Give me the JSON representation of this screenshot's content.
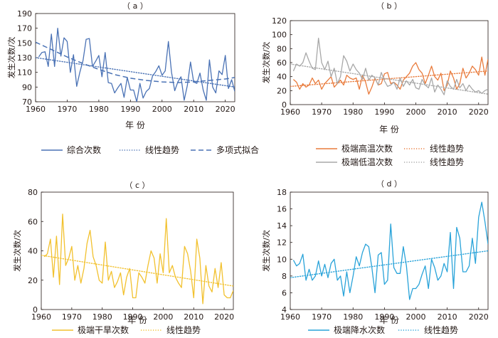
{
  "figure": {
    "xlabel": "年  份",
    "ylabel": "发生次数/次"
  },
  "chart_data": [
    {
      "id": "a",
      "letter": "（ a ）",
      "type": "line",
      "xlabel": "年  份",
      "ylabel": "发生次数/次",
      "xlim": [
        1960,
        2023
      ],
      "ylim": [
        70,
        190
      ],
      "xticks": [
        1960,
        1970,
        1980,
        1990,
        2000,
        2010,
        2020
      ],
      "yticks": [
        70,
        90,
        110,
        130,
        150,
        170,
        190
      ],
      "x": [
        1961,
        1962,
        1963,
        1964,
        1965,
        1966,
        1967,
        1968,
        1969,
        1970,
        1971,
        1972,
        1973,
        1974,
        1975,
        1976,
        1977,
        1978,
        1979,
        1980,
        1981,
        1982,
        1983,
        1984,
        1985,
        1986,
        1987,
        1988,
        1989,
        1990,
        1991,
        1992,
        1993,
        1994,
        1995,
        1996,
        1997,
        1998,
        1999,
        2000,
        2001,
        2002,
        2003,
        2004,
        2005,
        2006,
        2007,
        2008,
        2009,
        2010,
        2011,
        2012,
        2013,
        2014,
        2015,
        2016,
        2017,
        2018,
        2019,
        2020,
        2021,
        2022,
        2023
      ],
      "series": [
        {
          "name": "综合次数",
          "style": "solid",
          "color": "#4a72b5",
          "values": [
            131,
            137,
            138,
            118,
            162,
            118,
            170,
            132,
            157,
            152,
            110,
            134,
            91,
            110,
            126,
            155,
            156,
            118,
            125,
            133,
            104,
            137,
            96,
            95,
            82,
            89,
            95,
            76,
            103,
            86,
            86,
            70,
            95,
            75,
            84,
            88,
            105,
            111,
            119,
            106,
            112,
            152,
            110,
            85,
            97,
            104,
            72,
            92,
            124,
            97,
            95,
            109,
            86,
            72,
            127,
            90,
            82,
            112,
            107,
            133,
            88,
            100,
            84
          ]
        },
        {
          "name": "线性趋势",
          "style": "dotted",
          "color": "#4a72b5",
          "fit": "linear",
          "start": [
            1960,
            130
          ],
          "end": [
            2023,
            90
          ]
        },
        {
          "name": "多项式拟合",
          "style": "dashed",
          "color": "#4a72b5",
          "fit": "polynomial",
          "curve": [
            [
              1960,
              151
            ],
            [
              1965,
              141
            ],
            [
              1970,
              131
            ],
            [
              1975,
              122
            ],
            [
              1980,
              114
            ],
            [
              1985,
              107
            ],
            [
              1990,
              102
            ],
            [
              1995,
              99
            ],
            [
              2000,
              97
            ],
            [
              2005,
              96
            ],
            [
              2010,
              97
            ],
            [
              2015,
              99
            ],
            [
              2020,
              101
            ],
            [
              2023,
              103
            ]
          ]
        }
      ]
    },
    {
      "id": "b",
      "letter": "（ b ）",
      "type": "line",
      "xlabel": "年  份",
      "ylabel": "发生次数/次",
      "xlim": [
        1960,
        2023
      ],
      "ylim": [
        0,
        120
      ],
      "xticks": [
        1960,
        1970,
        1980,
        1990,
        2000,
        2010,
        2020
      ],
      "yticks": [
        0,
        20,
        40,
        60,
        80,
        100,
        120
      ],
      "x": [
        1961,
        1962,
        1963,
        1964,
        1965,
        1966,
        1967,
        1968,
        1969,
        1970,
        1971,
        1972,
        1973,
        1974,
        1975,
        1976,
        1977,
        1978,
        1979,
        1980,
        1981,
        1982,
        1983,
        1984,
        1985,
        1986,
        1987,
        1988,
        1989,
        1990,
        1991,
        1992,
        1993,
        1994,
        1995,
        1996,
        1997,
        1998,
        1999,
        2000,
        2001,
        2002,
        2003,
        2004,
        2005,
        2006,
        2007,
        2008,
        2009,
        2010,
        2011,
        2012,
        2013,
        2014,
        2015,
        2016,
        2017,
        2018,
        2019,
        2020,
        2021,
        2022,
        2023
      ],
      "series": [
        {
          "name": "极端高温次数",
          "style": "solid",
          "color": "#e97b3c",
          "values": [
            36,
            32,
            22,
            30,
            25,
            28,
            38,
            30,
            35,
            22,
            30,
            35,
            40,
            25,
            30,
            35,
            28,
            42,
            38,
            36,
            38,
            22,
            42,
            32,
            15,
            25,
            38,
            28,
            30,
            44,
            46,
            30,
            32,
            28,
            22,
            35,
            40,
            45,
            55,
            60,
            50,
            45,
            30,
            42,
            55,
            40,
            35,
            45,
            20,
            28,
            48,
            38,
            22,
            30,
            52,
            38,
            45,
            55,
            50,
            42,
            68,
            42,
            65
          ]
        },
        {
          "name": "线性趋势",
          "style": "dotted",
          "color": "#e97b3c",
          "fit": "linear",
          "start": [
            1960,
            26
          ],
          "end": [
            2023,
            48
          ]
        },
        {
          "name": "极端低温次数",
          "style": "solid",
          "color": "#a8a8a8",
          "values": [
            48,
            58,
            55,
            60,
            74,
            62,
            52,
            50,
            95,
            60,
            50,
            62,
            40,
            52,
            30,
            40,
            70,
            62,
            48,
            58,
            50,
            45,
            36,
            52,
            35,
            42,
            38,
            28,
            46,
            34,
            26,
            28,
            32,
            22,
            38,
            26,
            34,
            28,
            36,
            24,
            22,
            36,
            28,
            24,
            38,
            18,
            28,
            22,
            14,
            34,
            26,
            22,
            36,
            24,
            30,
            20,
            28,
            22,
            18,
            20,
            16,
            20,
            22
          ]
        },
        {
          "name": "线性趋势",
          "style": "dotted",
          "color": "#a8a8a8",
          "fit": "linear",
          "start": [
            1960,
            58
          ],
          "end": [
            2023,
            15
          ]
        }
      ]
    },
    {
      "id": "c",
      "letter": "（ c ）",
      "type": "line",
      "xlabel": "年  份",
      "ylabel": "发生次数/次",
      "xlim": [
        1960,
        2023
      ],
      "ylim": [
        0,
        80
      ],
      "xticks": [
        1960,
        1970,
        1980,
        1990,
        2000,
        2010,
        2020
      ],
      "yticks": [
        0,
        20,
        40,
        60,
        80
      ],
      "x": [
        1961,
        1962,
        1963,
        1964,
        1965,
        1966,
        1967,
        1968,
        1969,
        1970,
        1971,
        1972,
        1973,
        1974,
        1975,
        1976,
        1977,
        1978,
        1979,
        1980,
        1981,
        1982,
        1983,
        1984,
        1985,
        1986,
        1987,
        1988,
        1989,
        1990,
        1991,
        1992,
        1993,
        1994,
        1995,
        1996,
        1997,
        1998,
        1999,
        2000,
        2001,
        2002,
        2003,
        2004,
        2005,
        2006,
        2007,
        2008,
        2009,
        2010,
        2011,
        2012,
        2013,
        2014,
        2015,
        2016,
        2017,
        2018,
        2019,
        2020,
        2021,
        2022,
        2023
      ],
      "series": [
        {
          "name": "极端干旱次数",
          "style": "solid",
          "color": "#f2c12e",
          "values": [
            36,
            38,
            48,
            22,
            50,
            17,
            65,
            30,
            35,
            43,
            20,
            30,
            18,
            28,
            45,
            54,
            36,
            30,
            20,
            18,
            46,
            20,
            26,
            15,
            19,
            25,
            10,
            22,
            28,
            8,
            8,
            25,
            22,
            18,
            30,
            40,
            35,
            18,
            38,
            25,
            62,
            25,
            30,
            22,
            18,
            15,
            43,
            38,
            26,
            8,
            48,
            35,
            4,
            30,
            16,
            12,
            28,
            15,
            32,
            10,
            8,
            8,
            13
          ]
        },
        {
          "name": "线性趋势",
          "style": "dotted",
          "color": "#f2c12e",
          "fit": "linear",
          "start": [
            1960,
            37
          ],
          "end": [
            2023,
            16
          ]
        }
      ]
    },
    {
      "id": "d",
      "letter": "（ d ）",
      "type": "line",
      "xlabel": "年  份",
      "ylabel": "发生次数/次",
      "xlim": [
        1960,
        2023
      ],
      "ylim": [
        4,
        18
      ],
      "xticks": [
        1960,
        1970,
        1980,
        1990,
        2000,
        2010,
        2020
      ],
      "yticks": [
        4,
        6,
        8,
        10,
        12,
        14,
        16,
        18
      ],
      "x": [
        1961,
        1962,
        1963,
        1964,
        1965,
        1966,
        1967,
        1968,
        1969,
        1970,
        1971,
        1972,
        1973,
        1974,
        1975,
        1976,
        1977,
        1978,
        1979,
        1980,
        1981,
        1982,
        1983,
        1984,
        1985,
        1986,
        1987,
        1988,
        1989,
        1990,
        1991,
        1992,
        1993,
        1994,
        1995,
        1996,
        1997,
        1998,
        1999,
        2000,
        2001,
        2002,
        2003,
        2004,
        2005,
        2006,
        2007,
        2008,
        2009,
        2010,
        2011,
        2012,
        2013,
        2014,
        2015,
        2016,
        2017,
        2018,
        2019,
        2020,
        2021,
        2022,
        2023
      ],
      "series": [
        {
          "name": "极端降水次数",
          "style": "solid",
          "color": "#29a3d9",
          "values": [
            9.9,
            9.2,
            9.5,
            10.6,
            7.5,
            8.8,
            7.5,
            8.0,
            9.8,
            8.0,
            9.4,
            7.8,
            9.5,
            10.0,
            7.5,
            8.0,
            5.6,
            8.5,
            6.0,
            8.0,
            10.3,
            9.2,
            10.8,
            11.8,
            11.5,
            9.0,
            6.0,
            10.5,
            10.8,
            7.0,
            7.5,
            14.2,
            9.0,
            8.3,
            8.3,
            11.5,
            9.2,
            5.2,
            6.5,
            6.5,
            7.0,
            8.2,
            9.2,
            6.5,
            10.0,
            9.0,
            7.5,
            8.0,
            9.5,
            8.5,
            13.2,
            6.5,
            13.8,
            12.5,
            8.5,
            8.5,
            9.2,
            12.5,
            9.5,
            15.0,
            16.8,
            14.5,
            11.8
          ]
        },
        {
          "name": "线性趋势",
          "style": "dotted",
          "color": "#29a3d9",
          "fit": "linear",
          "start": [
            1960,
            7.8
          ],
          "end": [
            2023,
            11.0
          ]
        }
      ]
    }
  ]
}
